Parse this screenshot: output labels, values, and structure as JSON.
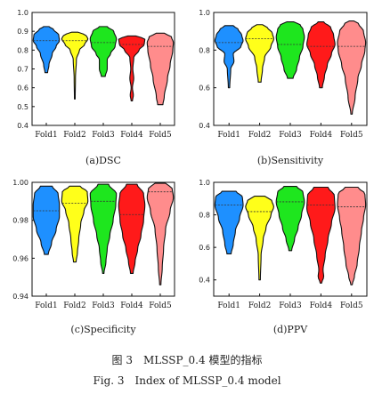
{
  "caption": {
    "cn": "图 3　MLSSP_0.4 模型的指标",
    "en": "Fig. 3　Index of MLSSP_0.4 model"
  },
  "series_colors": {
    "Fold1": "#1e90ff",
    "Fold2": "#ffff1a",
    "Fold3": "#1ee61e",
    "Fold4": "#ff1a1a",
    "Fold5": "#ff8c8c"
  },
  "chart_data": [
    {
      "type": "violin",
      "subtitle": "(a)DSC",
      "categories": [
        "Fold1",
        "Fold2",
        "Fold3",
        "Fold4",
        "Fold5"
      ],
      "ylim": [
        0.4,
        1.0
      ],
      "yticks": [
        0.4,
        0.5,
        0.6,
        0.7,
        0.8,
        0.9,
        1.0
      ],
      "tick_labels": [
        "0.4",
        "0.5",
        "0.6",
        "0.7",
        "0.8",
        "0.9",
        "1.0"
      ],
      "median": [
        0.85,
        0.85,
        0.84,
        0.83,
        0.82
      ],
      "profiles": [
        [
          [
            0.68,
            0.1
          ],
          [
            0.72,
            0.2
          ],
          [
            0.78,
            0.45
          ],
          [
            0.82,
            0.75
          ],
          [
            0.85,
            1.0
          ],
          [
            0.88,
            0.95
          ],
          [
            0.91,
            0.55
          ],
          [
            0.925,
            0.2
          ]
        ],
        [
          [
            0.54,
            0.03
          ],
          [
            0.65,
            0.05
          ],
          [
            0.75,
            0.12
          ],
          [
            0.8,
            0.35
          ],
          [
            0.83,
            0.75
          ],
          [
            0.86,
            1.0
          ],
          [
            0.88,
            0.85
          ],
          [
            0.895,
            0.25
          ]
        ],
        [
          [
            0.66,
            0.15
          ],
          [
            0.7,
            0.3
          ],
          [
            0.75,
            0.3
          ],
          [
            0.78,
            0.55
          ],
          [
            0.82,
            0.9
          ],
          [
            0.86,
            1.0
          ],
          [
            0.9,
            0.8
          ],
          [
            0.925,
            0.3
          ]
        ],
        [
          [
            0.53,
            0.05
          ],
          [
            0.56,
            0.12
          ],
          [
            0.6,
            0.05
          ],
          [
            0.65,
            0.15
          ],
          [
            0.7,
            0.08
          ],
          [
            0.76,
            0.15
          ],
          [
            0.8,
            0.55
          ],
          [
            0.83,
            0.95
          ],
          [
            0.86,
            1.0
          ],
          [
            0.875,
            0.3
          ]
        ],
        [
          [
            0.51,
            0.2
          ],
          [
            0.55,
            0.3
          ],
          [
            0.65,
            0.55
          ],
          [
            0.72,
            0.75
          ],
          [
            0.8,
            0.95
          ],
          [
            0.84,
            1.0
          ],
          [
            0.87,
            0.85
          ],
          [
            0.89,
            0.3
          ]
        ]
      ]
    },
    {
      "type": "violin",
      "subtitle": "(b)Sensitivity",
      "categories": [
        "Fold1",
        "Fold2",
        "Fold3",
        "Fold4",
        "Fold5"
      ],
      "ylim": [
        0.4,
        1.0
      ],
      "yticks": [
        0.4,
        0.6,
        0.8,
        1.0
      ],
      "tick_labels": [
        "0.4",
        "0.6",
        "0.8",
        "1.0"
      ],
      "median": [
        0.84,
        0.86,
        0.83,
        0.82,
        0.82
      ],
      "profiles": [
        [
          [
            0.6,
            0.05
          ],
          [
            0.7,
            0.12
          ],
          [
            0.74,
            0.35
          ],
          [
            0.78,
            0.3
          ],
          [
            0.82,
            0.85
          ],
          [
            0.85,
            1.0
          ],
          [
            0.88,
            0.9
          ],
          [
            0.91,
            0.65
          ],
          [
            0.93,
            0.3
          ]
        ],
        [
          [
            0.63,
            0.1
          ],
          [
            0.7,
            0.2
          ],
          [
            0.76,
            0.35
          ],
          [
            0.82,
            0.8
          ],
          [
            0.86,
            1.0
          ],
          [
            0.89,
            0.9
          ],
          [
            0.92,
            0.55
          ],
          [
            0.935,
            0.2
          ]
        ],
        [
          [
            0.65,
            0.2
          ],
          [
            0.7,
            0.45
          ],
          [
            0.76,
            0.65
          ],
          [
            0.82,
            0.9
          ],
          [
            0.87,
            1.0
          ],
          [
            0.91,
            0.9
          ],
          [
            0.935,
            0.7
          ],
          [
            0.95,
            0.25
          ]
        ],
        [
          [
            0.6,
            0.1
          ],
          [
            0.66,
            0.25
          ],
          [
            0.72,
            0.45
          ],
          [
            0.78,
            0.75
          ],
          [
            0.83,
            1.0
          ],
          [
            0.88,
            0.9
          ],
          [
            0.92,
            0.7
          ],
          [
            0.95,
            0.2
          ]
        ],
        [
          [
            0.46,
            0.05
          ],
          [
            0.55,
            0.25
          ],
          [
            0.65,
            0.45
          ],
          [
            0.72,
            0.7
          ],
          [
            0.8,
            0.95
          ],
          [
            0.84,
            1.0
          ],
          [
            0.9,
            0.85
          ],
          [
            0.94,
            0.5
          ],
          [
            0.955,
            0.15
          ]
        ]
      ]
    },
    {
      "type": "violin",
      "subtitle": "(c)Specificity",
      "categories": [
        "Fold1",
        "Fold2",
        "Fold3",
        "Fold4",
        "Fold5"
      ],
      "ylim": [
        0.94,
        1.0
      ],
      "yticks": [
        0.94,
        0.96,
        0.98,
        1.0
      ],
      "tick_labels": [
        "0.94",
        "0.96",
        "0.98",
        "1.00"
      ],
      "median": [
        0.985,
        0.989,
        0.99,
        0.983,
        0.995
      ],
      "profiles": [
        [
          [
            0.962,
            0.15
          ],
          [
            0.968,
            0.4
          ],
          [
            0.975,
            0.75
          ],
          [
            0.982,
            1.0
          ],
          [
            0.988,
            1.0
          ],
          [
            0.994,
            0.9
          ],
          [
            0.998,
            0.45
          ]
        ],
        [
          [
            0.958,
            0.1
          ],
          [
            0.963,
            0.2
          ],
          [
            0.97,
            0.3
          ],
          [
            0.978,
            0.45
          ],
          [
            0.985,
            0.7
          ],
          [
            0.99,
            1.0
          ],
          [
            0.995,
            0.95
          ],
          [
            0.998,
            0.4
          ]
        ],
        [
          [
            0.952,
            0.05
          ],
          [
            0.958,
            0.2
          ],
          [
            0.965,
            0.3
          ],
          [
            0.972,
            0.5
          ],
          [
            0.98,
            0.75
          ],
          [
            0.988,
            0.95
          ],
          [
            0.994,
            1.0
          ],
          [
            0.999,
            0.4
          ]
        ],
        [
          [
            0.952,
            0.1
          ],
          [
            0.958,
            0.25
          ],
          [
            0.965,
            0.45
          ],
          [
            0.972,
            0.7
          ],
          [
            0.98,
            0.9
          ],
          [
            0.988,
            1.0
          ],
          [
            0.994,
            0.9
          ],
          [
            0.999,
            0.4
          ]
        ],
        [
          [
            0.946,
            0.05
          ],
          [
            0.955,
            0.15
          ],
          [
            0.965,
            0.25
          ],
          [
            0.975,
            0.4
          ],
          [
            0.985,
            0.75
          ],
          [
            0.992,
            1.0
          ],
          [
            0.997,
            0.9
          ],
          [
            0.9995,
            0.4
          ]
        ]
      ]
    },
    {
      "type": "violin",
      "subtitle": "(d)PPV",
      "categories": [
        "Fold1",
        "Fold2",
        "Fold3",
        "Fold4",
        "Fold5"
      ],
      "ylim": [
        0.3,
        1.0
      ],
      "yticks": [
        0.4,
        0.6,
        0.8,
        1.0
      ],
      "tick_labels": [
        "0.4",
        "0.6",
        "0.8",
        "1.0"
      ],
      "median": [
        0.86,
        0.82,
        0.88,
        0.86,
        0.85
      ],
      "profiles": [
        [
          [
            0.56,
            0.15
          ],
          [
            0.62,
            0.3
          ],
          [
            0.7,
            0.45
          ],
          [
            0.78,
            0.75
          ],
          [
            0.86,
            1.0
          ],
          [
            0.91,
            0.95
          ],
          [
            0.945,
            0.5
          ]
        ],
        [
          [
            0.4,
            0.05
          ],
          [
            0.55,
            0.1
          ],
          [
            0.65,
            0.25
          ],
          [
            0.72,
            0.45
          ],
          [
            0.8,
            0.8
          ],
          [
            0.85,
            1.0
          ],
          [
            0.89,
            0.85
          ],
          [
            0.915,
            0.35
          ]
        ],
        [
          [
            0.58,
            0.1
          ],
          [
            0.65,
            0.3
          ],
          [
            0.72,
            0.55
          ],
          [
            0.8,
            0.8
          ],
          [
            0.88,
            1.0
          ],
          [
            0.94,
            0.9
          ],
          [
            0.975,
            0.45
          ]
        ],
        [
          [
            0.38,
            0.05
          ],
          [
            0.42,
            0.2
          ],
          [
            0.46,
            0.15
          ],
          [
            0.55,
            0.3
          ],
          [
            0.65,
            0.5
          ],
          [
            0.75,
            0.75
          ],
          [
            0.84,
            1.0
          ],
          [
            0.92,
            0.95
          ],
          [
            0.97,
            0.5
          ]
        ],
        [
          [
            0.37,
            0.05
          ],
          [
            0.42,
            0.2
          ],
          [
            0.5,
            0.4
          ],
          [
            0.6,
            0.55
          ],
          [
            0.7,
            0.7
          ],
          [
            0.78,
            0.85
          ],
          [
            0.86,
            1.0
          ],
          [
            0.93,
            0.95
          ],
          [
            0.97,
            0.45
          ]
        ]
      ]
    }
  ]
}
